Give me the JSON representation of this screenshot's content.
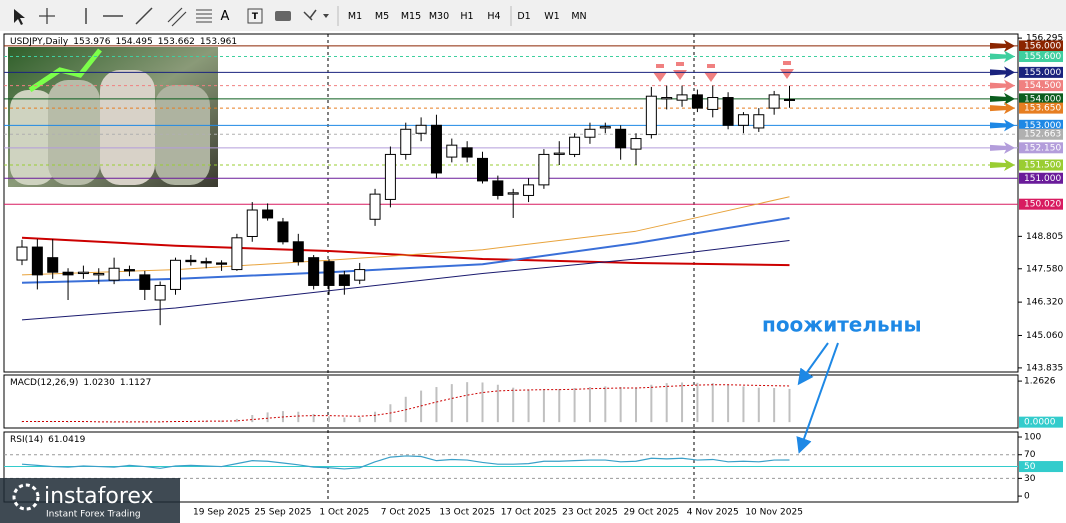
{
  "toolbar": {
    "text_tool": "A",
    "timeframes": [
      "M1",
      "M5",
      "M15",
      "M30",
      "H1",
      "H4",
      "D1",
      "W1",
      "MN"
    ]
  },
  "watermark": {
    "brand": "instaforex",
    "tagline": "Instant Forex Trading"
  },
  "chart_data": [
    {
      "type": "candlestick",
      "title": "USDJPY,Daily",
      "up_color": "#ffffff",
      "down_color": "#000000",
      "categories": [
        null,
        null,
        null,
        null,
        null,
        null,
        null,
        null,
        null,
        null,
        null,
        null,
        null,
        "19 Sep 2025",
        null,
        null,
        null,
        "25 Sep 2025",
        null,
        null,
        null,
        "1 Oct 2025",
        null,
        null,
        null,
        "7 Oct 2025",
        null,
        null,
        null,
        "13 Oct 2025",
        null,
        null,
        null,
        "17 Oct 2025",
        null,
        null,
        null,
        "23 Oct 2025",
        null,
        null,
        null,
        "29 Oct 2025",
        null,
        null,
        null,
        "4 Nov 2025",
        null,
        null,
        null,
        "10 Nov 2025",
        null
      ],
      "open": [
        147.91,
        148.4,
        148.0,
        147.45,
        147.4,
        147.35,
        147.15,
        147.55,
        147.35,
        146.4,
        146.8,
        147.9,
        147.85,
        147.8,
        147.55,
        148.8,
        149.8,
        149.35,
        148.6,
        148.0,
        147.85,
        147.35,
        147.15,
        149.45,
        150.2,
        151.9,
        152.7,
        153.0,
        151.8,
        152.15,
        151.75,
        150.9,
        150.4,
        150.35,
        150.75,
        151.9,
        151.9,
        152.55,
        152.9,
        152.85,
        152.1,
        152.65,
        154.0,
        153.95,
        154.15,
        153.6,
        154.05,
        153.0,
        152.9,
        153.65,
        153.976
      ],
      "high": [
        148.67,
        148.7,
        148.7,
        147.6,
        147.7,
        147.6,
        148.0,
        147.7,
        147.5,
        147.1,
        148.0,
        148.1,
        148.0,
        147.9,
        148.9,
        150.1,
        150.05,
        149.5,
        148.9,
        148.1,
        147.95,
        147.5,
        147.8,
        150.6,
        152.2,
        153.1,
        153.3,
        153.4,
        152.5,
        152.4,
        152.0,
        151.1,
        150.6,
        151.0,
        152.1,
        152.4,
        152.7,
        153.1,
        153.1,
        153.0,
        152.7,
        154.45,
        154.5,
        154.5,
        154.35,
        154.5,
        154.25,
        153.5,
        153.65,
        154.3,
        154.495
      ],
      "low": [
        147.72,
        146.8,
        147.2,
        146.4,
        147.2,
        147.0,
        147.0,
        147.3,
        146.4,
        145.45,
        146.6,
        147.7,
        147.6,
        147.5,
        147.5,
        148.6,
        149.4,
        148.5,
        147.7,
        146.8,
        146.6,
        146.6,
        147.0,
        149.2,
        149.9,
        151.7,
        152.4,
        151.0,
        151.6,
        151.6,
        150.8,
        150.2,
        149.5,
        150.1,
        150.6,
        151.5,
        151.8,
        152.3,
        152.7,
        151.7,
        151.5,
        152.5,
        153.6,
        153.7,
        153.5,
        153.3,
        152.85,
        152.7,
        152.75,
        153.4,
        153.662
      ],
      "close": [
        148.4,
        147.35,
        147.45,
        147.35,
        147.45,
        147.4,
        147.6,
        147.5,
        146.8,
        146.95,
        147.9,
        147.85,
        147.8,
        147.75,
        148.75,
        149.8,
        149.5,
        148.6,
        147.85,
        146.95,
        146.95,
        146.95,
        147.55,
        150.4,
        151.9,
        152.85,
        153.0,
        151.2,
        152.25,
        151.8,
        150.9,
        150.35,
        150.45,
        150.75,
        151.9,
        151.95,
        152.55,
        152.85,
        152.95,
        152.15,
        152.5,
        154.1,
        154.05,
        154.15,
        153.65,
        154.05,
        153.0,
        153.4,
        153.4,
        154.15,
        153.961
      ],
      "ylim": [
        143.68,
        156.45
      ],
      "yticks": [
        156.295,
        148.805,
        {
          "value": 147.58,
          "label": "147.580"
        },
        {
          "value": 146.32,
          "label": "146.320"
        },
        {
          "value": 145.06,
          "label": "145.060"
        },
        143.835
      ],
      "levels": [
        {
          "value": 156,
          "label": "156.000",
          "color": "#8b2500",
          "dashed": false,
          "arrow": true
        },
        {
          "value": 155.6,
          "label": "155.600",
          "color": "#3fcf9f",
          "dashed": true,
          "arrow": true
        },
        {
          "value": 155,
          "label": "155.000",
          "color": "#1a237e",
          "dashed": false,
          "arrow": true
        },
        {
          "value": 154.5,
          "label": "154.500",
          "color": "#f08080",
          "dashed": true,
          "arrow": true
        },
        {
          "value": 154,
          "label": "154.000",
          "color": "#0b5d1e",
          "dashed": false,
          "arrow": true
        },
        {
          "value": 153.65,
          "label": "153.650",
          "color": "#e67e22",
          "dashed": true,
          "arrow": true
        },
        {
          "value": 153,
          "label": "153.000",
          "color": "#1e88e5",
          "dashed": false,
          "arrow": true
        },
        {
          "value": 152.663,
          "label": "152.663",
          "color": "#b0b0b0",
          "dashed": true,
          "arrow": false
        },
        {
          "value": 152.15,
          "label": "152.150",
          "color": "#b39ddb",
          "dashed": false,
          "arrow": true
        },
        {
          "value": 151.5,
          "label": "151.500",
          "color": "#9acd32",
          "dashed": true,
          "arrow": true
        },
        {
          "value": 151,
          "label": "151.000",
          "color": "#6a1b9a",
          "dashed": false,
          "arrow": false
        },
        {
          "value": 150.02,
          "label": "150.020",
          "color": "#d81b60",
          "dashed": false,
          "arrow": false
        }
      ],
      "moving_averages": [
        {
          "color": "#cc0000",
          "width": 2,
          "x": [
            0,
            10,
            20,
            30,
            40,
            50
          ],
          "values": [
            148.75,
            148.45,
            148.25,
            147.95,
            147.8,
            147.72
          ]
        },
        {
          "color": "#e8a33c",
          "width": 1,
          "x": [
            0,
            10,
            20,
            30,
            40,
            50
          ],
          "values": [
            147.35,
            147.55,
            147.9,
            148.3,
            149.0,
            150.3
          ]
        },
        {
          "color": "#3a6fd8",
          "width": 2,
          "x": [
            0,
            10,
            20,
            30,
            40,
            50
          ],
          "values": [
            147.05,
            147.2,
            147.45,
            147.75,
            148.55,
            149.5
          ]
        },
        {
          "color": "#1a1a6e",
          "width": 1,
          "x": [
            0,
            10,
            20,
            30,
            40,
            50
          ],
          "values": [
            145.65,
            146.1,
            146.75,
            147.4,
            147.95,
            148.65
          ]
        }
      ],
      "annotation": "поожительны"
    },
    {
      "type": "macd",
      "title": "MACD(12,26,9)",
      "readout": [
        {
          "value": 1.023,
          "label": "1.0230"
        },
        1.1127
      ],
      "ylim": [
        -0.18,
        1.45
      ],
      "yticks": [
        1.2626,
        {
          "value": 0,
          "label": "0.0000"
        }
      ],
      "series": [
        {
          "color": "#c0c0c0",
          "values": [
            0.02,
            0.03,
            0.02,
            0.01,
            0.01,
            0.01,
            0.0,
            0.0,
            0.01,
            0.01,
            0.03,
            0.04,
            0.04,
            0.05,
            0.1,
            0.22,
            0.3,
            0.34,
            0.32,
            0.25,
            0.18,
            0.14,
            0.15,
            0.32,
            0.55,
            0.78,
            0.97,
            1.08,
            1.17,
            1.23,
            1.22,
            1.15,
            1.06,
            1.01,
            1.01,
            1.02,
            1.05,
            1.08,
            1.1,
            1.08,
            1.07,
            1.15,
            1.2,
            1.22,
            1.21,
            1.2,
            1.15,
            1.1,
            1.06,
            1.05,
            1.023
          ]
        },
        {
          "color": "#cc0000",
          "values": [
            0.02,
            0.02,
            0.02,
            0.02,
            0.02,
            0.01,
            0.01,
            0.01,
            0.01,
            0.01,
            0.02,
            0.02,
            0.03,
            0.03,
            0.04,
            0.08,
            0.12,
            0.16,
            0.19,
            0.2,
            0.2,
            0.19,
            0.18,
            0.21,
            0.28,
            0.38,
            0.5,
            0.62,
            0.73,
            0.83,
            0.91,
            0.96,
            0.98,
            0.99,
            1.0,
            1.0,
            1.01,
            1.03,
            1.04,
            1.05,
            1.05,
            1.07,
            1.1,
            1.12,
            1.14,
            1.15,
            1.15,
            1.14,
            1.13,
            1.12,
            1.1127
          ]
        }
      ]
    },
    {
      "type": "rsi",
      "title": "RSI(14)",
      "readout": 61.0419,
      "ylim": [
        -10,
        108.5
      ],
      "yticks": [
        100,
        70,
        50,
        30,
        0
      ],
      "levels": [
        {
          "value": 70,
          "color": "#999999",
          "dashed": true
        },
        {
          "value": 50,
          "color": "#33cccc",
          "dashed": false,
          "label_background": true
        },
        {
          "value": 30,
          "color": "#999999",
          "dashed": true
        }
      ],
      "series": [
        {
          "color": "#3aa0c8",
          "values": [
            54,
            52,
            50,
            49,
            51,
            50,
            49,
            52,
            50,
            47,
            51,
            52,
            51,
            50,
            55,
            60,
            59,
            56,
            53,
            49,
            48,
            46,
            48,
            58,
            66,
            68,
            67,
            60,
            62,
            61,
            57,
            54,
            54,
            55,
            59,
            59,
            60,
            61,
            61,
            58,
            59,
            64,
            63,
            64,
            61,
            62,
            58,
            59,
            58,
            61,
            61.0419
          ]
        }
      ]
    }
  ]
}
